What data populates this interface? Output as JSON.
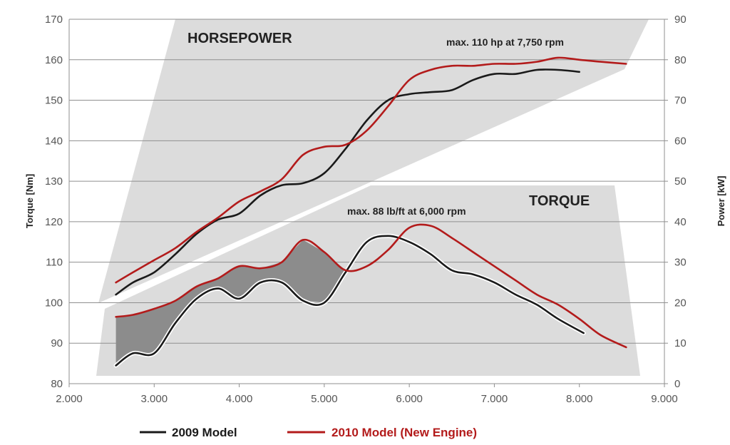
{
  "chart_data": {
    "type": "line",
    "x_label": "",
    "y_left_label": "Torque [Nm]",
    "y_right_label": "Power [kW]",
    "x_range": [
      2000,
      9000
    ],
    "x_ticks": [
      {
        "value": 2000,
        "label": "2.000"
      },
      {
        "value": 3000,
        "label": "3.000"
      },
      {
        "value": 4000,
        "label": "4.000"
      },
      {
        "value": 5000,
        "label": "5.000"
      },
      {
        "value": 6000,
        "label": "6.000"
      },
      {
        "value": 7000,
        "label": "7.000"
      },
      {
        "value": 8000,
        "label": "8.000"
      },
      {
        "value": 9000,
        "label": "9.000"
      }
    ],
    "y_left_range": [
      80,
      170
    ],
    "y_left_ticks": [
      80,
      90,
      100,
      110,
      120,
      130,
      140,
      150,
      160,
      170
    ],
    "y_right_range": [
      0,
      90
    ],
    "y_right_ticks": [
      0,
      10,
      20,
      30,
      40,
      50,
      60,
      70,
      80,
      90
    ],
    "grid": "horizontal",
    "legend_position": "bottom",
    "colors": {
      "model_2009": "#1a1a1a",
      "model_2010": "#b31b1b",
      "band": "#dcdcdc",
      "fill": "#8c8c8c"
    },
    "band_labels": {
      "horsepower": "HORSEPOWER",
      "torque": "TORQUE"
    },
    "annotations": [
      {
        "id": "hp",
        "text": "max. 110 hp at 7,750 rpm"
      },
      {
        "id": "torque",
        "text": "max. 88 lb/ft at 6,000 rpm"
      }
    ],
    "series": [
      {
        "name": "2009 Model",
        "kind": "power",
        "axis": "right",
        "color": "#1a1a1a",
        "points": [
          [
            2550,
            22
          ],
          [
            2750,
            25
          ],
          [
            3000,
            27.5
          ],
          [
            3250,
            32
          ],
          [
            3500,
            37
          ],
          [
            3750,
            40.5
          ],
          [
            4000,
            42
          ],
          [
            4250,
            46.5
          ],
          [
            4500,
            49
          ],
          [
            4750,
            49.5
          ],
          [
            5000,
            52
          ],
          [
            5250,
            58
          ],
          [
            5500,
            65
          ],
          [
            5750,
            70
          ],
          [
            6000,
            71.5
          ],
          [
            6250,
            72
          ],
          [
            6500,
            72.5
          ],
          [
            6750,
            75
          ],
          [
            7000,
            76.5
          ],
          [
            7250,
            76.5
          ],
          [
            7500,
            77.5
          ],
          [
            7750,
            77.5
          ],
          [
            8000,
            77
          ]
        ]
      },
      {
        "name": "2010 Model (New Engine)",
        "kind": "power",
        "axis": "right",
        "color": "#b31b1b",
        "points": [
          [
            2550,
            25
          ],
          [
            2750,
            27.5
          ],
          [
            3000,
            30.5
          ],
          [
            3250,
            33.5
          ],
          [
            3500,
            37.5
          ],
          [
            3750,
            41
          ],
          [
            4000,
            45
          ],
          [
            4250,
            47.5
          ],
          [
            4500,
            50.5
          ],
          [
            4750,
            56.5
          ],
          [
            5000,
            58.5
          ],
          [
            5250,
            59
          ],
          [
            5500,
            62.5
          ],
          [
            5750,
            68.5
          ],
          [
            6000,
            75
          ],
          [
            6250,
            77.5
          ],
          [
            6500,
            78.5
          ],
          [
            6750,
            78.5
          ],
          [
            7000,
            79
          ],
          [
            7250,
            79
          ],
          [
            7500,
            79.5
          ],
          [
            7750,
            80.5
          ],
          [
            8000,
            80
          ],
          [
            8250,
            79.5
          ],
          [
            8550,
            79
          ]
        ]
      },
      {
        "name": "2009 Model",
        "kind": "torque",
        "axis": "left",
        "color": "#1a1a1a",
        "points": [
          [
            2550,
            84.5
          ],
          [
            2750,
            87.5
          ],
          [
            3000,
            87.5
          ],
          [
            3250,
            95
          ],
          [
            3500,
            101
          ],
          [
            3750,
            103.5
          ],
          [
            4000,
            101
          ],
          [
            4250,
            105
          ],
          [
            4500,
            105
          ],
          [
            4750,
            100.5
          ],
          [
            5000,
            100
          ],
          [
            5250,
            107.5
          ],
          [
            5500,
            115
          ],
          [
            5750,
            116.5
          ],
          [
            6000,
            115
          ],
          [
            6250,
            112
          ],
          [
            6500,
            108
          ],
          [
            6750,
            107
          ],
          [
            7000,
            105
          ],
          [
            7250,
            102
          ],
          [
            7500,
            99.5
          ],
          [
            7750,
            96
          ],
          [
            8050,
            92.5
          ]
        ]
      },
      {
        "name": "2010 Model (New Engine)",
        "kind": "torque",
        "axis": "left",
        "color": "#b31b1b",
        "points": [
          [
            2550,
            96.5
          ],
          [
            2750,
            97
          ],
          [
            3000,
            98.5
          ],
          [
            3250,
            100.5
          ],
          [
            3500,
            104
          ],
          [
            3750,
            106
          ],
          [
            4000,
            109
          ],
          [
            4250,
            108.5
          ],
          [
            4500,
            110
          ],
          [
            4750,
            115.5
          ],
          [
            5000,
            112.5
          ],
          [
            5250,
            108
          ],
          [
            5500,
            109
          ],
          [
            5750,
            113
          ],
          [
            6000,
            118.5
          ],
          [
            6250,
            119
          ],
          [
            6500,
            116
          ],
          [
            6750,
            112.5
          ],
          [
            7000,
            109
          ],
          [
            7250,
            105.5
          ],
          [
            7500,
            102
          ],
          [
            7750,
            99.5
          ],
          [
            8000,
            96
          ],
          [
            8250,
            92
          ],
          [
            8550,
            89
          ]
        ]
      }
    ]
  },
  "legend": [
    {
      "label": "2009 Model",
      "color": "#1a1a1a"
    },
    {
      "label": "2010 Model (New Engine)",
      "color": "#b31b1b"
    }
  ]
}
